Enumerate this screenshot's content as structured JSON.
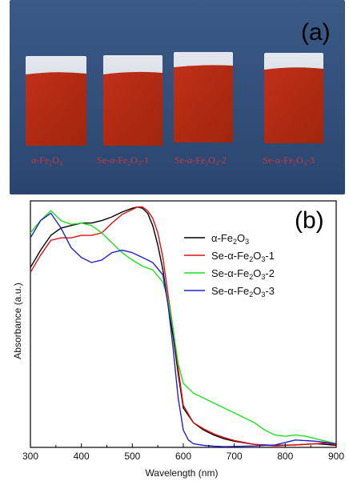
{
  "photo": {
    "panel_label": "(a)",
    "colors": {
      "background": "#2f4e7a",
      "glass": "#d6dbe3",
      "film": "#b4280e",
      "label": "#c8383c"
    },
    "samples": [
      {
        "formula": [
          "α-Fe",
          "2",
          "O",
          "3",
          ""
        ]
      },
      {
        "formula": [
          "Se-α-Fe",
          "2",
          "O",
          "3",
          "-1"
        ]
      },
      {
        "formula": [
          "Se-α-Fe",
          "2",
          "O",
          "3",
          "-2"
        ]
      },
      {
        "formula": [
          "Se-α-Fe",
          "2",
          "O",
          "3",
          "-3"
        ]
      }
    ]
  },
  "chart_data": {
    "type": "line",
    "panel_label": "(b)",
    "xlabel": "Wavelength (nm)",
    "ylabel": "Absorbance (a.u.)",
    "xlim": [
      300,
      900
    ],
    "ylim": [
      0,
      1.0
    ],
    "xticks": [
      300,
      400,
      500,
      600,
      700,
      800,
      900
    ],
    "grid": false,
    "legend_position": "top-right",
    "series": [
      {
        "name": [
          "α-Fe",
          "2",
          "O",
          "3",
          ""
        ],
        "color": "#000000",
        "x": [
          300,
          320,
          340,
          360,
          380,
          400,
          420,
          440,
          460,
          480,
          500,
          510,
          520,
          530,
          540,
          550,
          560,
          570,
          580,
          590,
          600,
          620,
          640,
          660,
          680,
          700,
          740,
          780,
          820,
          860,
          880,
          900
        ],
        "y": [
          0.73,
          0.8,
          0.86,
          0.89,
          0.9,
          0.91,
          0.91,
          0.92,
          0.935,
          0.955,
          0.97,
          0.975,
          0.97,
          0.95,
          0.9,
          0.82,
          0.72,
          0.58,
          0.45,
          0.3,
          0.16,
          0.1,
          0.07,
          0.05,
          0.035,
          0.025,
          0.012,
          0.008,
          0.01,
          0.015,
          0.012,
          0.008
        ]
      },
      {
        "name": [
          "Se-α-Fe",
          "2",
          "O",
          "3",
          "-1"
        ],
        "color": "#dd1111",
        "x": [
          300,
          320,
          340,
          360,
          380,
          400,
          420,
          440,
          460,
          480,
          500,
          510,
          520,
          530,
          540,
          550,
          560,
          570,
          580,
          590,
          600,
          620,
          640,
          660,
          680,
          700,
          740,
          780,
          820,
          860,
          880,
          900
        ],
        "y": [
          0.71,
          0.78,
          0.84,
          0.85,
          0.85,
          0.86,
          0.86,
          0.87,
          0.91,
          0.945,
          0.965,
          0.975,
          0.975,
          0.96,
          0.93,
          0.87,
          0.77,
          0.62,
          0.48,
          0.32,
          0.17,
          0.1,
          0.075,
          0.055,
          0.04,
          0.028,
          0.012,
          0.006,
          0.01,
          0.015,
          0.018,
          0.01
        ]
      },
      {
        "name": [
          "Se-α-Fe",
          "2",
          "O",
          "3",
          "-2"
        ],
        "color": "#22dd22",
        "x": [
          300,
          320,
          340,
          360,
          380,
          400,
          420,
          440,
          460,
          480,
          500,
          520,
          540,
          560,
          570,
          580,
          590,
          600,
          620,
          640,
          660,
          680,
          700,
          720,
          740,
          760,
          780,
          800,
          820,
          840,
          860,
          880,
          900
        ],
        "y": [
          0.87,
          0.92,
          0.96,
          0.92,
          0.905,
          0.91,
          0.9,
          0.87,
          0.83,
          0.79,
          0.76,
          0.735,
          0.72,
          0.67,
          0.6,
          0.48,
          0.34,
          0.26,
          0.22,
          0.2,
          0.18,
          0.16,
          0.14,
          0.12,
          0.1,
          0.07,
          0.05,
          0.045,
          0.05,
          0.045,
          0.035,
          0.025,
          0.015
        ]
      },
      {
        "name": [
          "Se-α-Fe",
          "2",
          "O",
          "3",
          "-3"
        ],
        "color": "#2222cc",
        "x": [
          300,
          320,
          340,
          360,
          380,
          400,
          420,
          440,
          460,
          480,
          500,
          520,
          540,
          560,
          570,
          580,
          590,
          600,
          610,
          620,
          640,
          660,
          680,
          700,
          740,
          780,
          820,
          860,
          880,
          900
        ],
        "y": [
          0.85,
          0.92,
          0.95,
          0.89,
          0.81,
          0.77,
          0.75,
          0.76,
          0.79,
          0.8,
          0.79,
          0.77,
          0.75,
          0.7,
          0.58,
          0.4,
          0.2,
          0.07,
          0.03,
          0.015,
          0.008,
          0.005,
          0.003,
          0.004,
          0.006,
          0.01,
          0.03,
          0.025,
          0.02,
          0.015
        ]
      }
    ]
  }
}
